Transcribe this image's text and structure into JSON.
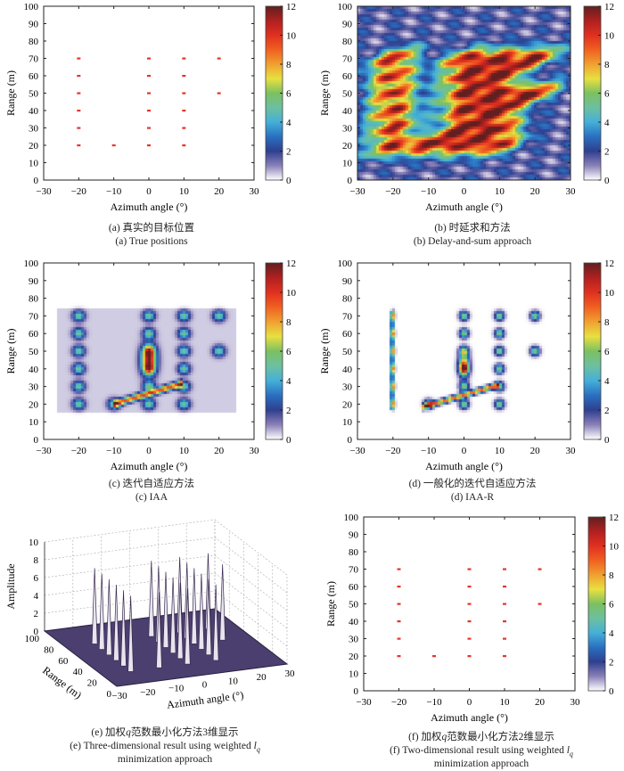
{
  "colorbar": {
    "ticks": [
      0,
      2,
      4,
      6,
      8,
      10,
      12
    ],
    "range": [
      0,
      12
    ],
    "colormap": [
      "#ffffff",
      "#8a80b8",
      "#2f3f8f",
      "#2a70c0",
      "#45b0d8",
      "#6cc0a0",
      "#7cc060",
      "#e8e040",
      "#f0a030",
      "#f06020",
      "#e03020",
      "#b02020",
      "#602020"
    ]
  },
  "chart_data": [
    {
      "id": "a",
      "type": "scatter",
      "xlabel": "Azimuth angle (°)",
      "ylabel": "Range (m)",
      "xlim": [
        -30,
        30
      ],
      "ylim": [
        0,
        100
      ],
      "xticks": [
        -30,
        -20,
        -10,
        0,
        10,
        20,
        30
      ],
      "yticks": [
        0,
        10,
        20,
        30,
        40,
        50,
        60,
        70,
        80,
        90,
        100
      ],
      "caption_cn": "(a) 真实的目标位置",
      "caption_en": "(a) True positions",
      "marker_color": "#e8332a",
      "points": [
        [
          -20,
          20
        ],
        [
          -20,
          30
        ],
        [
          -20,
          40
        ],
        [
          -20,
          50
        ],
        [
          -20,
          60
        ],
        [
          -20,
          70
        ],
        [
          -10,
          20
        ],
        [
          0,
          20
        ],
        [
          0,
          30
        ],
        [
          0,
          40
        ],
        [
          0,
          50
        ],
        [
          0,
          60
        ],
        [
          0,
          70
        ],
        [
          10,
          20
        ],
        [
          10,
          30
        ],
        [
          10,
          40
        ],
        [
          10,
          50
        ],
        [
          10,
          60
        ],
        [
          10,
          70
        ],
        [
          20,
          50
        ],
        [
          20,
          70
        ]
      ]
    },
    {
      "id": "b",
      "type": "heatmap",
      "xlabel": "Azimuth angle (°)",
      "ylabel": "Range (m)",
      "xlim": [
        -30,
        30
      ],
      "ylim": [
        0,
        100
      ],
      "xticks": [
        -30,
        -20,
        -10,
        0,
        10,
        20,
        30
      ],
      "yticks": [
        0,
        10,
        20,
        30,
        40,
        50,
        60,
        70,
        80,
        90,
        100
      ],
      "caption_cn": "(b) 时延求和方法",
      "caption_en": "(b) Delay-and-sum approach"
    },
    {
      "id": "c",
      "type": "heatmap",
      "xlabel": "Azimuth angle (°)",
      "ylabel": "Range (m)",
      "xlim": [
        -30,
        30
      ],
      "ylim": [
        0,
        100
      ],
      "xticks": [
        -30,
        -20,
        -10,
        0,
        10,
        20,
        30
      ],
      "yticks": [
        0,
        10,
        20,
        30,
        40,
        50,
        60,
        70,
        80,
        90,
        100
      ],
      "caption_cn": "(c) 迭代自适应方法",
      "caption_en": "(c) IAA"
    },
    {
      "id": "d",
      "type": "heatmap",
      "xlabel": "Azimuth angle (°)",
      "ylabel": "Range (m)",
      "xlim": [
        -30,
        30
      ],
      "ylim": [
        0,
        100
      ],
      "xticks": [
        -30,
        -20,
        -10,
        0,
        10,
        20,
        30
      ],
      "yticks": [
        0,
        10,
        20,
        30,
        40,
        50,
        60,
        70,
        80,
        90,
        100
      ],
      "caption_cn": "(d) 一般化的迭代自适应方法",
      "caption_en": "(d) IAA-R"
    },
    {
      "id": "e",
      "type": "surface3d",
      "xlabel": "Azimuth angle (°)",
      "ylabel": "Range (m)",
      "zlabel": "Amplitude",
      "xticks": [
        -30,
        -20,
        -10,
        0,
        10,
        20,
        30
      ],
      "yticks": [
        0,
        20,
        40,
        60,
        80,
        100
      ],
      "zticks": [
        0,
        2,
        4,
        6,
        8,
        10
      ],
      "caption_cn_pre": "(e) 加权",
      "caption_cn_q": "q",
      "caption_cn_post": "范数最小化方法3维显示",
      "caption_en_pre": "(e) Three-dimensional result using weighted ",
      "caption_en_l": "l",
      "caption_en_sub": "q",
      "caption_en_line2": "minimization approach",
      "peak_height": 8.5
    },
    {
      "id": "f",
      "type": "scatter",
      "xlabel": "Azimuth angle (°)",
      "ylabel": "Range (m)",
      "xlim": [
        -30,
        30
      ],
      "ylim": [
        0,
        100
      ],
      "xticks": [
        -30,
        -20,
        -10,
        0,
        10,
        20,
        30
      ],
      "yticks": [
        0,
        10,
        20,
        30,
        40,
        50,
        60,
        70,
        80,
        90,
        100
      ],
      "caption_cn_pre": "(f) 加权",
      "caption_cn_q": "q",
      "caption_cn_post": "范数最小化方法2维显示",
      "caption_en_pre": "(f) Two-dimensional result using weighted ",
      "caption_en_l": "l",
      "caption_en_sub": "q",
      "caption_en_line2": "minimization approach",
      "marker_color": "#e8332a",
      "points": [
        [
          -20,
          20
        ],
        [
          -20,
          30
        ],
        [
          -20,
          40
        ],
        [
          -20,
          50
        ],
        [
          -20,
          60
        ],
        [
          -20,
          70
        ],
        [
          -10,
          20
        ],
        [
          0,
          20
        ],
        [
          0,
          30
        ],
        [
          0,
          40
        ],
        [
          0,
          50
        ],
        [
          0,
          60
        ],
        [
          0,
          70
        ],
        [
          10,
          20
        ],
        [
          10,
          30
        ],
        [
          10,
          40
        ],
        [
          10,
          50
        ],
        [
          10,
          60
        ],
        [
          10,
          70
        ],
        [
          20,
          50
        ],
        [
          20,
          70
        ]
      ]
    }
  ]
}
